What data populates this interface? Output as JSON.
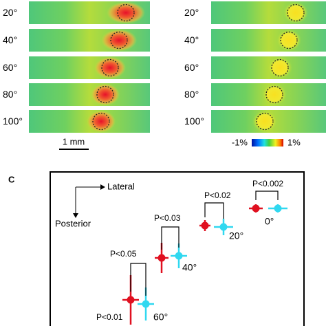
{
  "panel_a": {
    "left_rows": [
      "20°",
      "40°",
      "60°",
      "80°",
      "100°"
    ],
    "right_rows": [
      "20°",
      "40°",
      "60°",
      "80°",
      "100°"
    ],
    "scale_bar": "1 mm",
    "colorbar": {
      "min_label": "-1%",
      "max_label": "1%"
    }
  },
  "panel_c": {
    "label": "C",
    "axis_lateral": "Lateral",
    "axis_posterior": "Posterior",
    "groups": [
      {
        "angle": "0°",
        "p": "P<0.002"
      },
      {
        "angle": "20°",
        "p": "P<0.02"
      },
      {
        "angle": "40°",
        "p": "P<0.03"
      },
      {
        "angle": "60°",
        "p": "P<0.05"
      }
    ],
    "extra_p": "P<0.01"
  }
}
